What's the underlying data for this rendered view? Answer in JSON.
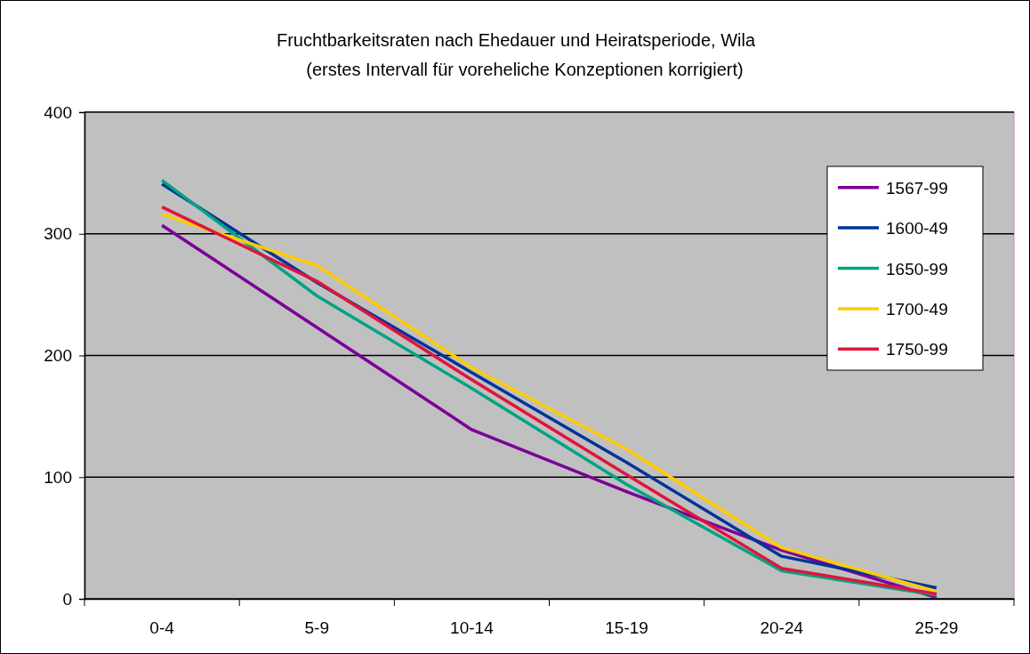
{
  "chart_data": {
    "type": "line",
    "title": "Fruchtbarkeitsraten nach Ehedauer und Heiratsperiode, Wila",
    "subtitle": "(erstes Intervall für voreheliche Konzeptionen korrigiert)",
    "categories": [
      "0-4",
      "5-9",
      "10-14",
      "15-19",
      "20-24",
      "25-29"
    ],
    "series": [
      {
        "name": "1567-99",
        "color": "#7b0099",
        "values": [
          307,
          223,
          139,
          88,
          40,
          1
        ]
      },
      {
        "name": "1600-49",
        "color": "#003399",
        "values": [
          341,
          260,
          186,
          112,
          35,
          9
        ]
      },
      {
        "name": "1650-99",
        "color": "#00a383",
        "values": [
          344,
          249,
          173,
          94,
          23,
          3
        ]
      },
      {
        "name": "1700-49",
        "color": "#ffcc00",
        "values": [
          316,
          274,
          190,
          123,
          42,
          6
        ]
      },
      {
        "name": "1750-99",
        "color": "#e0143c",
        "values": [
          322,
          261,
          180,
          102,
          25,
          4
        ]
      }
    ],
    "ylim": [
      0,
      400
    ],
    "yticks": [
      0,
      100,
      200,
      300,
      400
    ],
    "grid": "y",
    "legend": "right",
    "marker": "none",
    "line_style": "solid"
  }
}
